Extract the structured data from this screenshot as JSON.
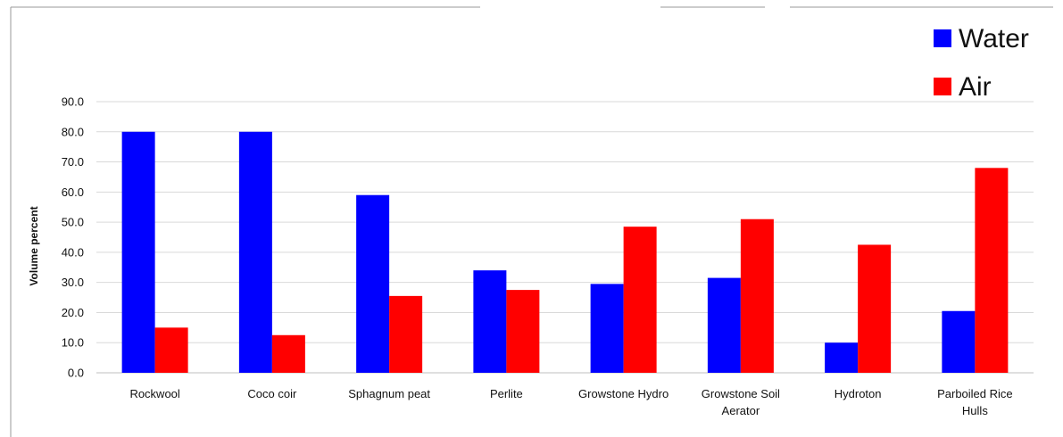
{
  "chart_data": {
    "type": "bar",
    "categories": [
      "Rockwool",
      "Coco coir",
      "Sphagnum peat",
      "Perlite",
      "Growstone Hydro",
      "Growstone Soil Aerator",
      "Hydroton",
      "Parboiled Rice Hulls"
    ],
    "category_lines": [
      [
        "Rockwool"
      ],
      [
        "Coco coir"
      ],
      [
        "Sphagnum peat"
      ],
      [
        "Perlite"
      ],
      [
        "Growstone Hydro"
      ],
      [
        "Growstone Soil",
        "Aerator"
      ],
      [
        "Hydroton"
      ],
      [
        "Parboiled Rice",
        "Hulls"
      ]
    ],
    "series": [
      {
        "name": "Water",
        "color": "#0000ff",
        "values": [
          80.0,
          80.0,
          59.0,
          34.0,
          29.5,
          31.5,
          10.0,
          20.5
        ]
      },
      {
        "name": "Air",
        "color": "#ff0000",
        "values": [
          15.0,
          12.5,
          25.5,
          27.5,
          48.5,
          51.0,
          42.5,
          68.0
        ]
      }
    ],
    "ylabel": "Volume  percent",
    "ylim": [
      0,
      90
    ],
    "yticks": [
      "0.0",
      "10.0",
      "20.0",
      "30.0",
      "40.0",
      "50.0",
      "60.0",
      "70.0",
      "80.0",
      "90.0"
    ],
    "grid": true,
    "legend_position": "top-right"
  }
}
